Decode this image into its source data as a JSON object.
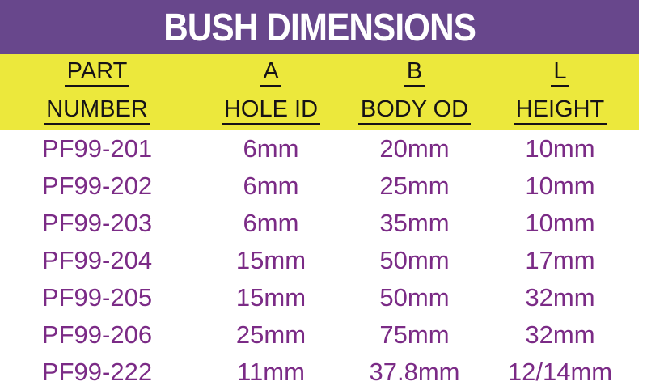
{
  "chart_data": {
    "type": "table",
    "title": "BUSH DIMENSIONS",
    "columns": [
      {
        "line1": "PART",
        "line2": "NUMBER"
      },
      {
        "line1": "A",
        "line2": "HOLE ID"
      },
      {
        "line1": "B",
        "line2": "BODY OD"
      },
      {
        "line1": "L",
        "line2": "HEIGHT"
      }
    ],
    "rows": [
      [
        "PF99-201",
        "6mm",
        "20mm",
        "10mm"
      ],
      [
        "PF99-202",
        "6mm",
        "25mm",
        "10mm"
      ],
      [
        "PF99-203",
        "6mm",
        "35mm",
        "10mm"
      ],
      [
        "PF99-204",
        "15mm",
        "50mm",
        "17mm"
      ],
      [
        "PF99-205",
        "15mm",
        "50mm",
        "32mm"
      ],
      [
        "PF99-206",
        "25mm",
        "75mm",
        "32mm"
      ],
      [
        "PF99-222",
        "11mm",
        "37.8mm",
        "12/14mm"
      ]
    ]
  },
  "colors": {
    "banner_background": "#68478C",
    "banner_text": "#FFFFFF",
    "header_background": "#ECE83C",
    "header_text": "#161316",
    "row_text": "#7B2B86",
    "page_background": "#FFFFFF"
  }
}
